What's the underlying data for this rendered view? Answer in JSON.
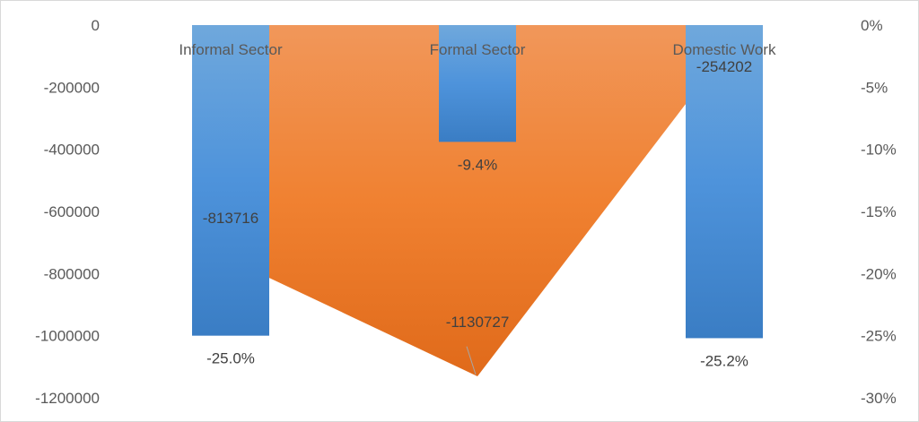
{
  "chart_data": {
    "type": "bar",
    "categories": [
      "Informal Sector",
      "Formal Sector",
      "Domestic Work"
    ],
    "series": [
      {
        "axis": "right",
        "type": "bar",
        "values": [
          -25.0,
          -9.4,
          -25.2
        ],
        "labels": [
          "-25.0%",
          "-9.4%",
          "-25.2%"
        ],
        "color": "#5B9BD5"
      },
      {
        "axis": "left",
        "type": "area",
        "values": [
          -813716,
          -1130727,
          -254202
        ],
        "labels": [
          "-813716",
          "-1130727",
          "-254202"
        ],
        "color": "#ED7D31"
      }
    ],
    "y_left": {
      "ylim": [
        -1200000,
        0
      ],
      "ticks": [
        0,
        -200000,
        -400000,
        -600000,
        -800000,
        -1000000,
        -1200000
      ],
      "tick_labels": [
        "0",
        "-200000",
        "-400000",
        "-600000",
        "-800000",
        "-1000000",
        "-1200000"
      ]
    },
    "y_right": {
      "ylim": [
        -30,
        0
      ],
      "ticks": [
        0,
        -5,
        -10,
        -15,
        -20,
        -25,
        -30
      ],
      "tick_labels": [
        "0%",
        "-5%",
        "-10%",
        "-15%",
        "-20%",
        "-25%",
        "-30%"
      ]
    },
    "grid": false,
    "legend": "none",
    "title": "",
    "xlabel": "",
    "ylabel": ""
  }
}
